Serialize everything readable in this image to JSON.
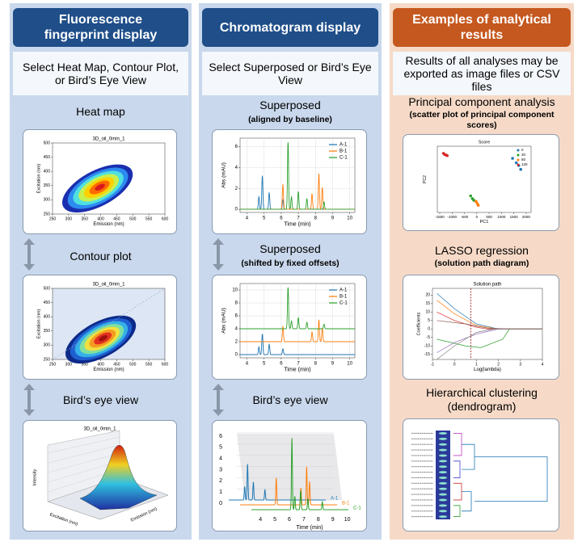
{
  "columns": [
    {
      "header": "Fluorescence fingerprint display",
      "instruction": "Select Heat Map, Contour Plot, or Bird’s Eye View",
      "header_color": "#1f4e89",
      "background": "#c9d8ec",
      "panels": [
        {
          "label": "Heat map",
          "plot": {
            "type": "heatmap",
            "title": "3D_oil_0min_1",
            "x_label": "Emission (nm)",
            "y_label": "Excitation (nm)",
            "xlim": [
              250,
              600
            ],
            "ylim": [
              250,
              500
            ],
            "xticks": [
              250,
              300,
              350,
              400,
              450,
              500,
              550,
              600
            ],
            "yticks": [
              250,
              300,
              350,
              400,
              450,
              500
            ],
            "peak": [
              390,
              340
            ]
          }
        },
        {
          "label": "Contour plot",
          "plot": {
            "type": "contour",
            "title": "3D_oil_0min_1",
            "x_label": "Emission (nm)",
            "y_label": "Excitation (nm)",
            "xlim": [
              250,
              600
            ],
            "ylim": [
              250,
              500
            ],
            "xticks": [
              250,
              300,
              350,
              400,
              450,
              500,
              550,
              600
            ],
            "yticks": [
              250,
              300,
              350,
              400,
              450,
              500
            ],
            "peak": [
              400,
              320
            ]
          }
        },
        {
          "label": "Bird’s eye view",
          "plot": {
            "type": "surface",
            "title": "3D_oil_0min_1",
            "x_label": "Excitation (nm)",
            "y_label": "Emission (nm)",
            "z_label": "Intensity"
          }
        }
      ]
    },
    {
      "header": "Chromatogram display",
      "instruction": "Select Superposed or Bird’s Eye View",
      "header_color": "#1f4e89",
      "background": "#c9d8ec",
      "panels": [
        {
          "label": "Superposed",
          "sublabel": "(aligned by baseline)",
          "plot": {
            "type": "chromatogram",
            "x_label": "Time (min)",
            "y_label": "Abs (mAU)",
            "xlim": [
              3.6,
              10.3
            ],
            "ylim": [
              -0.3,
              6.8
            ],
            "xticks": [
              4,
              5,
              6,
              7,
              8,
              9,
              10
            ],
            "yticks": [
              0,
              2,
              4,
              6
            ],
            "series": [
              {
                "name": "A-1",
                "color": "#1f77b4",
                "offset": 0,
                "peaks": [
                  [
                    4.7,
                    1.2
                  ],
                  [
                    4.9,
                    3.2
                  ],
                  [
                    5.3,
                    1.6
                  ],
                  [
                    6.1,
                    0.9
                  ]
                ]
              },
              {
                "name": "B-1",
                "color": "#ff7f0e",
                "offset": 0,
                "peaks": [
                  [
                    6.1,
                    2.4
                  ],
                  [
                    7.8,
                    1.5
                  ],
                  [
                    8.2,
                    3.4
                  ],
                  [
                    8.4,
                    2.1
                  ]
                ]
              },
              {
                "name": "C-1",
                "color": "#2ca02c",
                "offset": 0,
                "peaks": [
                  [
                    6.4,
                    6.4
                  ],
                  [
                    6.6,
                    1.2
                  ],
                  [
                    7.0,
                    1.7
                  ],
                  [
                    7.5,
                    1.0
                  ],
                  [
                    8.5,
                    0.7
                  ]
                ]
              }
            ]
          }
        },
        {
          "label": "Superposed",
          "sublabel": "(shifted by fixed offsets)",
          "plot": {
            "type": "chromatogram",
            "x_label": "Time (min)",
            "y_label": "Abs (mAU)",
            "xlim": [
              3.6,
              10.3
            ],
            "ylim": [
              -0.5,
              11
            ],
            "xticks": [
              4,
              5,
              6,
              7,
              8,
              9,
              10
            ],
            "yticks": [
              0,
              2,
              4,
              6,
              8,
              10
            ],
            "series": [
              {
                "name": "A-1",
                "color": "#1f77b4",
                "offset": 0,
                "peaks": [
                  [
                    4.7,
                    1.2
                  ],
                  [
                    4.9,
                    3.2
                  ],
                  [
                    5.3,
                    1.6
                  ],
                  [
                    6.1,
                    0.9
                  ]
                ]
              },
              {
                "name": "B-1",
                "color": "#ff7f0e",
                "offset": 2,
                "peaks": [
                  [
                    6.1,
                    2.4
                  ],
                  [
                    7.8,
                    1.5
                  ],
                  [
                    8.2,
                    3.4
                  ],
                  [
                    8.4,
                    2.1
                  ]
                ]
              },
              {
                "name": "C-1",
                "color": "#2ca02c",
                "offset": 4,
                "peaks": [
                  [
                    6.4,
                    6.4
                  ],
                  [
                    6.6,
                    1.2
                  ],
                  [
                    7.0,
                    1.7
                  ],
                  [
                    7.5,
                    1.0
                  ],
                  [
                    8.5,
                    0.7
                  ]
                ]
              }
            ]
          }
        },
        {
          "label": "Bird’s eye view",
          "plot": {
            "type": "chromatogram3d",
            "x_label": "Time (min)",
            "xlim": [
              3.6,
              10.3
            ],
            "ylim": [
              0,
              6.5
            ],
            "xticks": [
              4,
              5,
              6,
              7,
              8,
              9,
              10
            ],
            "yticks": [
              0,
              1,
              2,
              3,
              4,
              5,
              6
            ],
            "series": [
              {
                "name": "A-1",
                "color": "#1f77b4",
                "peaks": [
                  [
                    4.7,
                    1.2
                  ],
                  [
                    4.9,
                    3.2
                  ],
                  [
                    5.3,
                    1.6
                  ],
                  [
                    6.1,
                    0.9
                  ]
                ]
              },
              {
                "name": "B-1",
                "color": "#ff7f0e",
                "peaks": [
                  [
                    6.1,
                    2.4
                  ],
                  [
                    7.8,
                    1.5
                  ],
                  [
                    8.2,
                    3.4
                  ],
                  [
                    8.4,
                    2.1
                  ]
                ]
              },
              {
                "name": "C-1",
                "color": "#2ca02c",
                "peaks": [
                  [
                    6.4,
                    6.4
                  ],
                  [
                    6.6,
                    1.2
                  ],
                  [
                    7.0,
                    1.7
                  ],
                  [
                    7.5,
                    1.0
                  ],
                  [
                    8.5,
                    0.7
                  ]
                ]
              }
            ]
          }
        }
      ]
    },
    {
      "header": "Examples of analytical results",
      "instruction": "Results of all analyses may be exported as image files or CSV files",
      "header_color": "#c5581f",
      "background": "#f6dac7",
      "panels": [
        {
          "label": "Principal component analysis",
          "sublabel": "(scatter plot of principal component scores)",
          "plot": {
            "type": "scatter",
            "title": "Score",
            "x_label": "PC1",
            "y_label": "PC2",
            "xlim": [
              -1600,
              2200
            ],
            "ylim": [
              -600,
              600
            ],
            "xticks": [
              -1500,
              -1000,
              -500,
              0,
              500,
              1000,
              1500,
              2000
            ],
            "groups": [
              {
                "name": "0",
                "color": "#1f77b4",
                "points": [
                  [
                    1450,
                    380
                  ],
                  [
                    1600,
                    300
                  ],
                  [
                    1700,
                    250
                  ],
                  [
                    1780,
                    180
                  ]
                ]
              },
              {
                "name": "30",
                "color": "#2ca02c",
                "points": [
                  [
                    -250,
                    -300
                  ],
                  [
                    -180,
                    -350
                  ],
                  [
                    -120,
                    -380
                  ]
                ]
              },
              {
                "name": "60",
                "color": "#ff7f0e",
                "points": [
                  [
                    -30,
                    -400
                  ],
                  [
                    20,
                    -440
                  ],
                  [
                    60,
                    -470
                  ]
                ]
              },
              {
                "name": "120",
                "color": "#d62728",
                "points": [
                  [
                    -1350,
                    470
                  ],
                  [
                    -1300,
                    450
                  ],
                  [
                    -1250,
                    440
                  ],
                  [
                    -1200,
                    430
                  ]
                ]
              }
            ]
          }
        },
        {
          "label": "LASSO regression",
          "sublabel": "(solution path diagram)",
          "plot": {
            "type": "lasso",
            "title": "Solution path",
            "x_label": "Log(lambda)",
            "y_label": "Coefficients",
            "xlim": [
              -1,
              4
            ],
            "ylim": [
              -18,
              24
            ],
            "xticks": [
              -1,
              0,
              1,
              2,
              3,
              4
            ],
            "yticks": [
              -15,
              -10,
              -5,
              0,
              5,
              10,
              15,
              20
            ],
            "lambda": 0.75,
            "paths": [
              {
                "color": "#1f77b4",
                "points": [
                  [
                    -0.8,
                    21
                  ],
                  [
                    0,
                    12
                  ],
                  [
                    1,
                    3
                  ],
                  [
                    2,
                    0
                  ],
                  [
                    4,
                    0
                  ]
                ]
              },
              {
                "color": "#ff7f0e",
                "points": [
                  [
                    -0.8,
                    17
                  ],
                  [
                    0,
                    9
                  ],
                  [
                    1,
                    2
                  ],
                  [
                    2,
                    0
                  ],
                  [
                    4,
                    0
                  ]
                ]
              },
              {
                "color": "#2ca02c",
                "points": [
                  [
                    -0.8,
                    -6
                  ],
                  [
                    0.5,
                    -10
                  ],
                  [
                    1.2,
                    -11
                  ],
                  [
                    2.2,
                    -6
                  ],
                  [
                    2.5,
                    0
                  ],
                  [
                    4,
                    0
                  ]
                ]
              },
              {
                "color": "#d62728",
                "points": [
                  [
                    -0.8,
                    10
                  ],
                  [
                    0,
                    5
                  ],
                  [
                    1,
                    1
                  ],
                  [
                    1.5,
                    0
                  ],
                  [
                    4,
                    0
                  ]
                ]
              },
              {
                "color": "#9467bd",
                "points": [
                  [
                    -0.8,
                    -14
                  ],
                  [
                    0,
                    -8
                  ],
                  [
                    1,
                    -3
                  ],
                  [
                    2,
                    0
                  ],
                  [
                    4,
                    0
                  ]
                ]
              },
              {
                "color": "#8c564b",
                "points": [
                  [
                    -0.8,
                    5
                  ],
                  [
                    0.5,
                    3
                  ],
                  [
                    1.5,
                    0.5
                  ],
                  [
                    2.5,
                    0
                  ],
                  [
                    4,
                    0
                  ]
                ]
              },
              {
                "color": "#7f7f7f",
                "points": [
                  [
                    -0.8,
                    -18
                  ],
                  [
                    0,
                    -10
                  ],
                  [
                    1,
                    -2
                  ],
                  [
                    1.8,
                    0
                  ],
                  [
                    4,
                    0
                  ]
                ]
              }
            ]
          }
        },
        {
          "label": "Hierarchical clustering (dendrogram)",
          "plot": {
            "type": "dendrogram"
          }
        }
      ]
    }
  ]
}
